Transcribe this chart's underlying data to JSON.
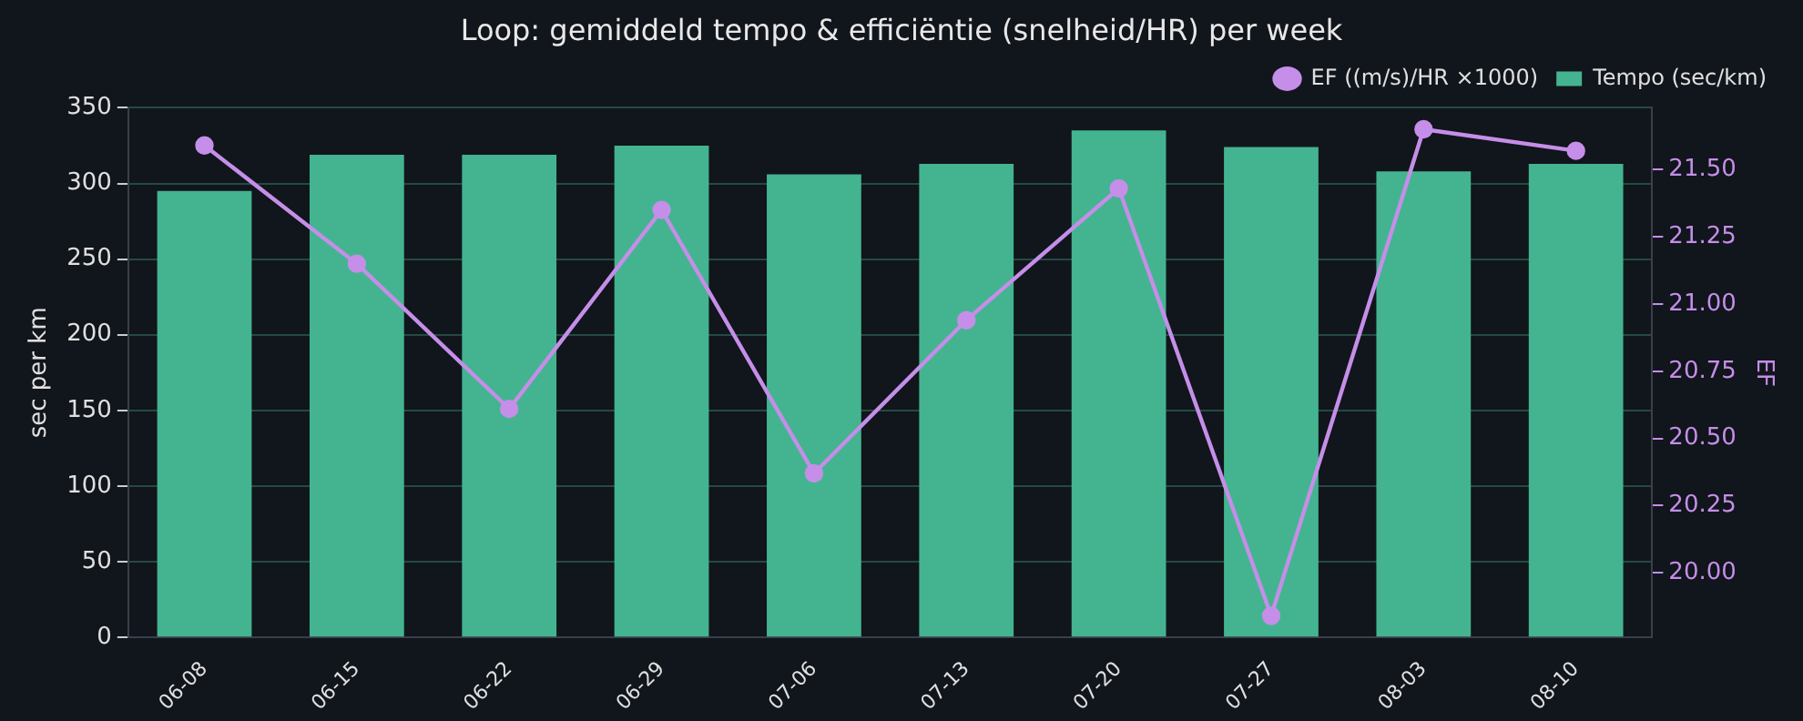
{
  "chart_data": {
    "type": "bar",
    "title": "Loop: gemiddeld tempo & efficiëntie (snelheid/HR) per week",
    "ylabel": "sec per km",
    "y2label": "EF",
    "categories": [
      "06-08",
      "06-15",
      "06-22",
      "06-29",
      "07-06",
      "07-13",
      "07-20",
      "07-27",
      "08-03",
      "08-10"
    ],
    "series": [
      {
        "name": "Tempo (sec/km)",
        "color": "#43b48f",
        "values": [
          295,
          319,
          319,
          325,
          306,
          313,
          335,
          324,
          308,
          313
        ]
      },
      {
        "name": "EF ((m/s)/HR ×1000)",
        "type": "line",
        "axis": "y2",
        "color": "#c58ee8",
        "values": [
          21.59,
          21.15,
          20.61,
          21.35,
          20.37,
          20.94,
          21.43,
          19.84,
          21.65,
          21.57
        ]
      }
    ],
    "ylim": [
      0,
      350
    ],
    "yticks": [
      0,
      50,
      100,
      150,
      200,
      250,
      300,
      350
    ],
    "y2lim": [
      19.76,
      21.73
    ],
    "y2ticks": [
      {
        "value": 20,
        "label": "20.00"
      },
      {
        "value": 20.25,
        "label": "20.25"
      },
      {
        "value": 20.5,
        "label": "20.50"
      },
      {
        "value": 20.75,
        "label": "20.75"
      },
      {
        "value": 21,
        "label": "21.00"
      },
      {
        "value": 21.25,
        "label": "21.25"
      },
      {
        "value": 21.5,
        "label": "21.50"
      }
    ],
    "grid": "y",
    "legend": "top right",
    "marker": "circle",
    "line_style": "solid"
  }
}
